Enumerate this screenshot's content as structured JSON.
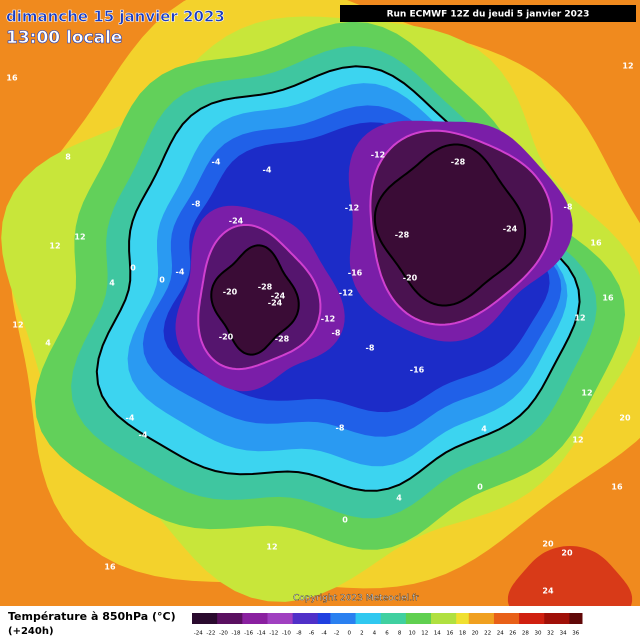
{
  "header": {
    "title": "dimanche 15 janvier 2023",
    "time": "13:00 locale",
    "run": "Run ECMWF 12Z du jeudi 5 janvier 2023"
  },
  "footer": {
    "copyright": "Copyright 2023 Meteociel.fr",
    "legend_title": "Température à 850hPa (°C)",
    "lead_time": "(+240h)"
  },
  "legend": {
    "values": [
      -24,
      -22,
      -20,
      -18,
      -16,
      -14,
      -12,
      -10,
      -8,
      -6,
      -4,
      -2,
      0,
      2,
      4,
      6,
      8,
      10,
      12,
      14,
      16,
      18,
      20,
      22,
      24,
      26,
      28,
      30,
      32,
      34,
      36
    ]
  },
  "map": {
    "contour_labels": [
      "-28",
      "-24",
      "-28",
      "-24",
      "-16",
      "-20",
      "-12",
      "-20",
      "-28",
      "-24",
      "-24",
      "-12",
      "-12",
      "-8",
      "-4",
      "-4",
      "-12",
      "-8",
      "-8",
      "-16",
      "-20",
      "-28",
      "-4",
      "-4",
      "-4",
      "-8",
      "0",
      "0",
      "4",
      "8",
      "12",
      "12",
      "12",
      "4",
      "16",
      "12",
      "16",
      "16",
      "12",
      "12",
      "12",
      "20",
      "20",
      "20",
      "24",
      "16",
      "-8",
      "16",
      "12",
      "4",
      "0",
      "0",
      "4"
    ]
  }
}
